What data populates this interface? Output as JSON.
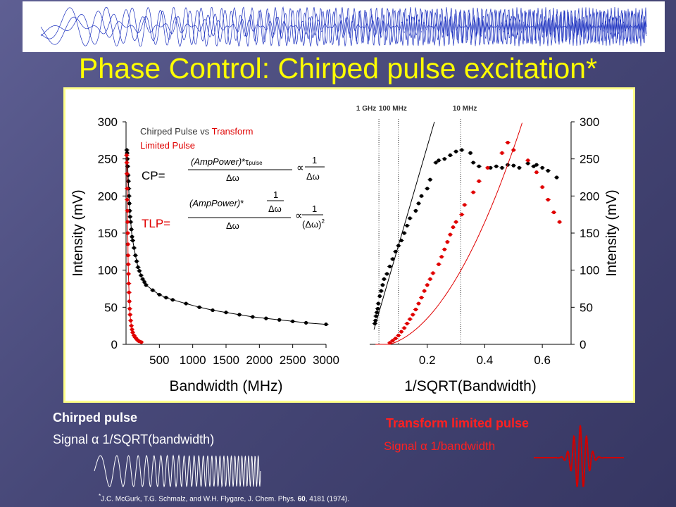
{
  "title": "Phase Control: Chirped pulse excitation*",
  "colors": {
    "title": "#ffff00",
    "red": "#e00000",
    "black": "#000000",
    "accent_red": "#ff2020"
  },
  "chart_data": [
    {
      "type": "scatter",
      "xlabel": "Bandwidth (MHz)",
      "ylabel": "Intensity (mV)",
      "xlim": [
        0,
        3000
      ],
      "ylim": [
        0,
        300
      ],
      "xticks": [
        "500",
        "1000",
        "1500",
        "2000",
        "2500",
        "3000"
      ],
      "yticks": [
        "0",
        "50",
        "100",
        "150",
        "200",
        "250",
        "300"
      ],
      "legend": {
        "prefix": "Chirped Pulse vs ",
        "highlight": "Transform",
        "suffix": "Limited Pulse"
      },
      "formula_labels": {
        "cp": "CP=",
        "tlp": "TLP="
      },
      "series": [
        {
          "color": "#000000",
          "points": [
            [
              12,
              262
            ],
            [
              16,
              258
            ],
            [
              20,
              250
            ],
            [
              25,
              240
            ],
            [
              30,
              228
            ],
            [
              35,
              220
            ],
            [
              40,
              210
            ],
            [
              45,
              200
            ],
            [
              50,
              190
            ],
            [
              55,
              180
            ],
            [
              60,
              172
            ],
            [
              70,
              165
            ],
            [
              80,
              155
            ],
            [
              90,
              145
            ],
            [
              100,
              140
            ],
            [
              120,
              130
            ],
            [
              140,
              120
            ],
            [
              160,
              112
            ],
            [
              180,
              104
            ],
            [
              200,
              99
            ],
            [
              225,
              93
            ],
            [
              250,
              88
            ],
            [
              275,
              84
            ],
            [
              300,
              80
            ],
            [
              400,
              73
            ],
            [
              500,
              67
            ],
            [
              600,
              63
            ],
            [
              700,
              60
            ],
            [
              900,
              55
            ],
            [
              1100,
              50
            ],
            [
              1300,
              46
            ],
            [
              1500,
              43
            ],
            [
              1700,
              40
            ],
            [
              1900,
              37
            ],
            [
              2100,
              35
            ],
            [
              2300,
              33
            ],
            [
              2500,
              31
            ],
            [
              2700,
              29
            ],
            [
              3000,
              27
            ]
          ]
        },
        {
          "color": "#e00000",
          "points": [
            [
              10,
              255
            ],
            [
              12,
              245
            ],
            [
              14,
              230
            ],
            [
              16,
              210
            ],
            [
              18,
              195
            ],
            [
              20,
              180
            ],
            [
              22,
              165
            ],
            [
              25,
              150
            ],
            [
              28,
              135
            ],
            [
              30,
              120
            ],
            [
              33,
              108
            ],
            [
              36,
              95
            ],
            [
              40,
              82
            ],
            [
              45,
              70
            ],
            [
              50,
              58
            ],
            [
              55,
              48
            ],
            [
              60,
              40
            ],
            [
              70,
              32
            ],
            [
              80,
              25
            ],
            [
              90,
              20
            ],
            [
              100,
              16
            ],
            [
              120,
              12
            ],
            [
              140,
              9
            ],
            [
              160,
              7
            ],
            [
              180,
              5
            ],
            [
              200,
              4
            ],
            [
              230,
              3
            ]
          ]
        }
      ]
    },
    {
      "type": "scatter",
      "xlabel": "1/SQRT(Bandwidth)",
      "ylabel": "Intensity (mV)",
      "xlim": [
        0,
        0.7
      ],
      "ylim": [
        0,
        300
      ],
      "xticks": [
        "0.2",
        "0.4",
        "0.6"
      ],
      "yticks": [
        "0",
        "50",
        "100",
        "150",
        "200",
        "250",
        "300"
      ],
      "vlines": [
        {
          "x": 0.032,
          "label": "1 GHz"
        },
        {
          "x": 0.1,
          "label": "100 MHz"
        },
        {
          "x": 0.316,
          "label": "10 MHz"
        }
      ],
      "series": [
        {
          "color": "#000000",
          "points": [
            [
              0.018,
              28
            ],
            [
              0.02,
              32
            ],
            [
              0.022,
              38
            ],
            [
              0.025,
              43
            ],
            [
              0.028,
              48
            ],
            [
              0.03,
              55
            ],
            [
              0.035,
              65
            ],
            [
              0.04,
              72
            ],
            [
              0.045,
              80
            ],
            [
              0.05,
              88
            ],
            [
              0.06,
              95
            ],
            [
              0.07,
              105
            ],
            [
              0.08,
              115
            ],
            [
              0.09,
              125
            ],
            [
              0.1,
              133
            ],
            [
              0.11,
              140
            ],
            [
              0.12,
              150
            ],
            [
              0.13,
              160
            ],
            [
              0.14,
              170
            ],
            [
              0.16,
              180
            ],
            [
              0.17,
              190
            ],
            [
              0.18,
              200
            ],
            [
              0.2,
              210
            ],
            [
              0.21,
              222
            ],
            [
              0.23,
              245
            ],
            [
              0.24,
              248
            ],
            [
              0.26,
              250
            ],
            [
              0.28,
              255
            ],
            [
              0.3,
              260
            ],
            [
              0.32,
              262
            ],
            [
              0.35,
              258
            ],
            [
              0.36,
              245
            ],
            [
              0.38,
              240
            ],
            [
              0.42,
              238
            ],
            [
              0.44,
              240
            ],
            [
              0.46,
              238
            ],
            [
              0.48,
              242
            ],
            [
              0.5,
              241
            ],
            [
              0.52,
              238
            ],
            [
              0.55,
              244
            ],
            [
              0.57,
              240
            ],
            [
              0.58,
              242
            ],
            [
              0.6,
              238
            ],
            [
              0.62,
              234
            ],
            [
              0.65,
              225
            ]
          ]
        },
        {
          "color": "#e00000",
          "points": [
            [
              0.07,
              2
            ],
            [
              0.08,
              5
            ],
            [
              0.09,
              8
            ],
            [
              0.1,
              12
            ],
            [
              0.11,
              17
            ],
            [
              0.12,
              22
            ],
            [
              0.13,
              28
            ],
            [
              0.14,
              34
            ],
            [
              0.15,
              40
            ],
            [
              0.16,
              47
            ],
            [
              0.17,
              55
            ],
            [
              0.18,
              63
            ],
            [
              0.19,
              72
            ],
            [
              0.2,
              80
            ],
            [
              0.21,
              88
            ],
            [
              0.22,
              96
            ],
            [
              0.24,
              108
            ],
            [
              0.25,
              118
            ],
            [
              0.26,
              128
            ],
            [
              0.27,
              138
            ],
            [
              0.28,
              148
            ],
            [
              0.29,
              158
            ],
            [
              0.3,
              165
            ],
            [
              0.32,
              175
            ],
            [
              0.33,
              188
            ],
            [
              0.36,
              205
            ],
            [
              0.38,
              220
            ],
            [
              0.41,
              238
            ],
            [
              0.46,
              258
            ],
            [
              0.48,
              272
            ],
            [
              0.5,
              262
            ],
            [
              0.55,
              248
            ],
            [
              0.58,
              232
            ],
            [
              0.6,
              212
            ],
            [
              0.62,
              195
            ],
            [
              0.64,
              178
            ],
            [
              0.66,
              165
            ]
          ]
        }
      ]
    }
  ],
  "chirped": {
    "heading": "Chirped pulse",
    "signal": "Signal α 1/SQRT(bandwidth)"
  },
  "transform": {
    "heading": "Transform limited pulse",
    "signal": "Signal α 1/bandwidth"
  },
  "citation": {
    "prefix": "J.C. McGurk, T.G. Schmalz, and W.H. Flygare, J. Chem. Phys. ",
    "volume": "60",
    "suffix": ", 4181 (1974)."
  }
}
